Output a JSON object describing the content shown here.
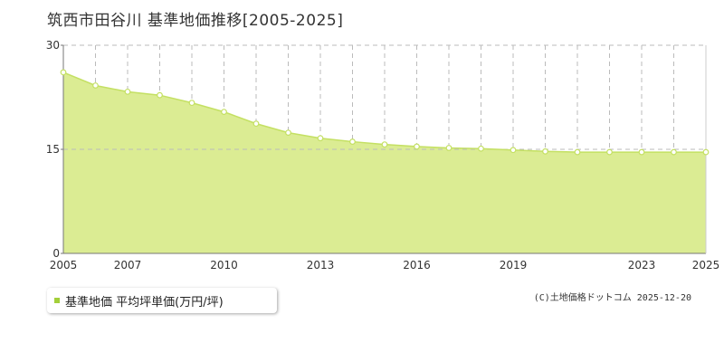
{
  "title": "筑西市田谷川 基準地価推移[2005-2025]",
  "legend": {
    "label": "基準地価 平均坪単価(万円/坪)"
  },
  "credit": "(C)土地価格ドットコム 2025-12-20",
  "colors": {
    "fill": "#dbec93",
    "line": "#c4e063",
    "marker_fill": "#ffffff",
    "grid": "#bbbbbb",
    "axis_text": "#333333",
    "swatch": "#a3cf3a"
  },
  "chart_data": {
    "type": "area",
    "x": [
      2005,
      2006,
      2007,
      2008,
      2009,
      2010,
      2011,
      2012,
      2013,
      2014,
      2015,
      2016,
      2017,
      2018,
      2019,
      2020,
      2021,
      2022,
      2023,
      2024,
      2025
    ],
    "series": [
      {
        "name": "基準地価 平均坪単価(万円/坪)",
        "values": [
          26.1,
          24.2,
          23.3,
          22.8,
          21.7,
          20.4,
          18.7,
          17.4,
          16.6,
          16.1,
          15.7,
          15.4,
          15.2,
          15.1,
          14.9,
          14.7,
          14.6,
          14.6,
          14.6,
          14.6,
          14.6
        ]
      }
    ],
    "xlim": [
      2005,
      2025
    ],
    "ylim": [
      0,
      30
    ],
    "x_tick_labels": [
      "2005",
      "2007",
      "2010",
      "2013",
      "2016",
      "2019",
      "2023",
      "2025"
    ],
    "y_tick_labels": [
      "0",
      "15",
      "30"
    ],
    "grid": true
  }
}
